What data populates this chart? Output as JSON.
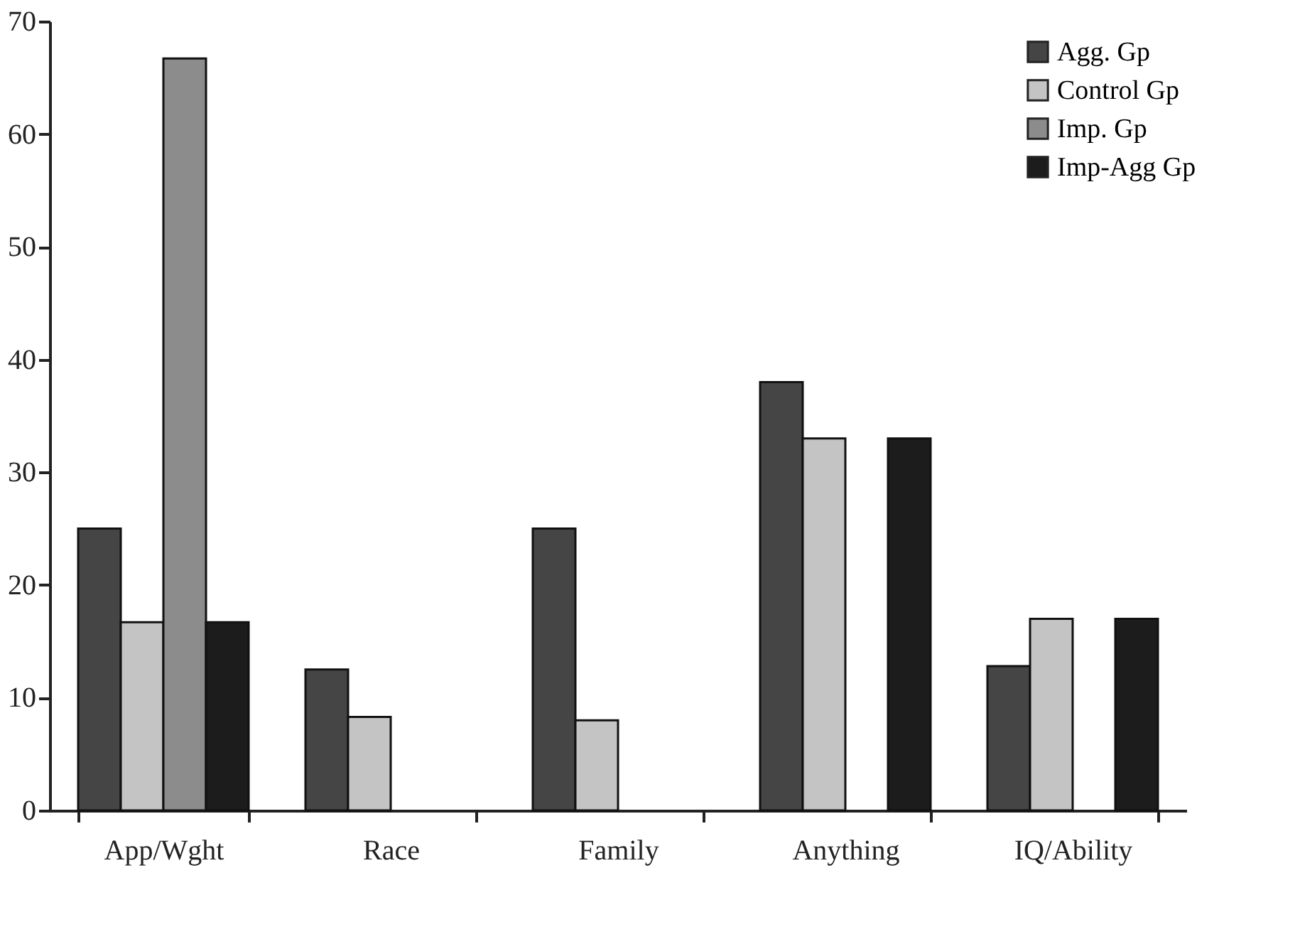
{
  "chart_data": {
    "type": "bar",
    "categories": [
      "App/Wght",
      "Race",
      "Family",
      "Anything",
      "IQ/Ability"
    ],
    "series": [
      {
        "name": "Agg. Gp",
        "color": "#454545",
        "values": [
          25,
          12.5,
          25,
          38,
          12.8
        ]
      },
      {
        "name": "Control Gp",
        "color": "#c4c4c4",
        "values": [
          16.7,
          8.3,
          8,
          33,
          17
        ]
      },
      {
        "name": "Imp. Gp",
        "color": "#8c8c8c",
        "values": [
          66.7,
          null,
          null,
          null,
          null
        ]
      },
      {
        "name": "Imp-Agg Gp",
        "color": "#1c1c1c",
        "values": [
          16.7,
          null,
          null,
          33,
          17
        ]
      }
    ],
    "ylim": [
      0,
      70
    ],
    "yticks": [
      0,
      10,
      20,
      30,
      40,
      50,
      60,
      70
    ],
    "grid": false,
    "legend": "top right"
  }
}
